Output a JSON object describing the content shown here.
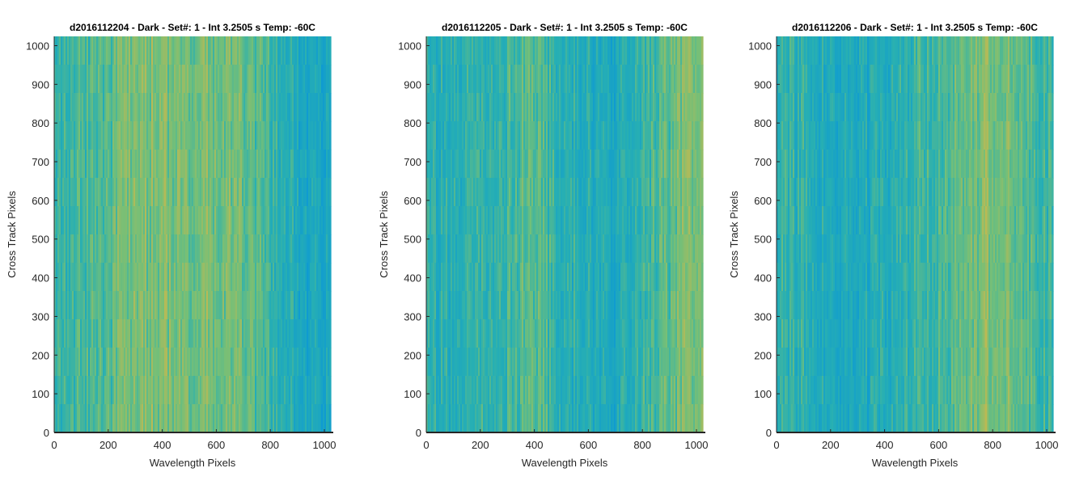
{
  "colors": {
    "blue": "#0f9bd1",
    "teal": "#27afb3",
    "green": "#74bf78",
    "yellow": "#cfb84a",
    "axis": "#262626"
  },
  "chart_data": [
    {
      "type": "heatmap",
      "title": "d2016112204 - Dark - Set#: 1 - Int 3.2505 s Temp: -60C",
      "xlabel": "Wavelength Pixels",
      "ylabel": "Cross Track Pixels",
      "xlim": [
        0,
        1024
      ],
      "ylim": [
        0,
        1024
      ],
      "xticks": [
        0,
        200,
        400,
        600,
        800,
        1000
      ],
      "yticks": [
        0,
        100,
        200,
        300,
        400,
        500,
        600,
        700,
        800,
        900,
        1000
      ],
      "colormap": "parula",
      "column_profile": [
        {
          "x": 0,
          "v": 0.38
        },
        {
          "x": 100,
          "v": 0.45
        },
        {
          "x": 200,
          "v": 0.52
        },
        {
          "x": 300,
          "v": 0.66
        },
        {
          "x": 400,
          "v": 0.7
        },
        {
          "x": 500,
          "v": 0.64
        },
        {
          "x": 600,
          "v": 0.68
        },
        {
          "x": 700,
          "v": 0.6
        },
        {
          "x": 800,
          "v": 0.45
        },
        {
          "x": 880,
          "v": 0.28
        },
        {
          "x": 950,
          "v": 0.15
        },
        {
          "x": 1024,
          "v": 0.2
        }
      ]
    },
    {
      "type": "heatmap",
      "title": "d2016112205 - Dark - Set#: 1 - Int 3.2505 s Temp: -60C",
      "xlabel": "Wavelength Pixels",
      "ylabel": "Cross Track Pixels",
      "xlim": [
        0,
        1024
      ],
      "ylim": [
        0,
        1024
      ],
      "xticks": [
        0,
        200,
        400,
        600,
        800,
        1000
      ],
      "yticks": [
        0,
        100,
        200,
        300,
        400,
        500,
        600,
        700,
        800,
        900,
        1000
      ],
      "colormap": "parula",
      "column_profile": [
        {
          "x": 0,
          "v": 0.3
        },
        {
          "x": 100,
          "v": 0.32
        },
        {
          "x": 200,
          "v": 0.35
        },
        {
          "x": 300,
          "v": 0.45
        },
        {
          "x": 400,
          "v": 0.52
        },
        {
          "x": 500,
          "v": 0.38
        },
        {
          "x": 600,
          "v": 0.28
        },
        {
          "x": 700,
          "v": 0.25
        },
        {
          "x": 800,
          "v": 0.4
        },
        {
          "x": 900,
          "v": 0.55
        },
        {
          "x": 980,
          "v": 0.72
        },
        {
          "x": 1024,
          "v": 0.82
        }
      ]
    },
    {
      "type": "heatmap",
      "title": "d2016112206 - Dark - Set#: 1 - Int 3.2505 s Temp: -60C",
      "xlabel": "Wavelength Pixels",
      "ylabel": "Cross Track Pixels",
      "xlim": [
        0,
        1024
      ],
      "ylim": [
        0,
        1024
      ],
      "xticks": [
        0,
        200,
        400,
        600,
        800,
        1000
      ],
      "yticks": [
        0,
        100,
        200,
        300,
        400,
        500,
        600,
        700,
        800,
        900,
        1000
      ],
      "colormap": "parula",
      "column_profile": [
        {
          "x": 0,
          "v": 0.4
        },
        {
          "x": 100,
          "v": 0.35
        },
        {
          "x": 200,
          "v": 0.28
        },
        {
          "x": 300,
          "v": 0.22
        },
        {
          "x": 400,
          "v": 0.3
        },
        {
          "x": 500,
          "v": 0.4
        },
        {
          "x": 600,
          "v": 0.48
        },
        {
          "x": 700,
          "v": 0.6
        },
        {
          "x": 800,
          "v": 0.72
        },
        {
          "x": 850,
          "v": 0.7
        },
        {
          "x": 950,
          "v": 0.48
        },
        {
          "x": 1024,
          "v": 0.42
        }
      ]
    }
  ]
}
